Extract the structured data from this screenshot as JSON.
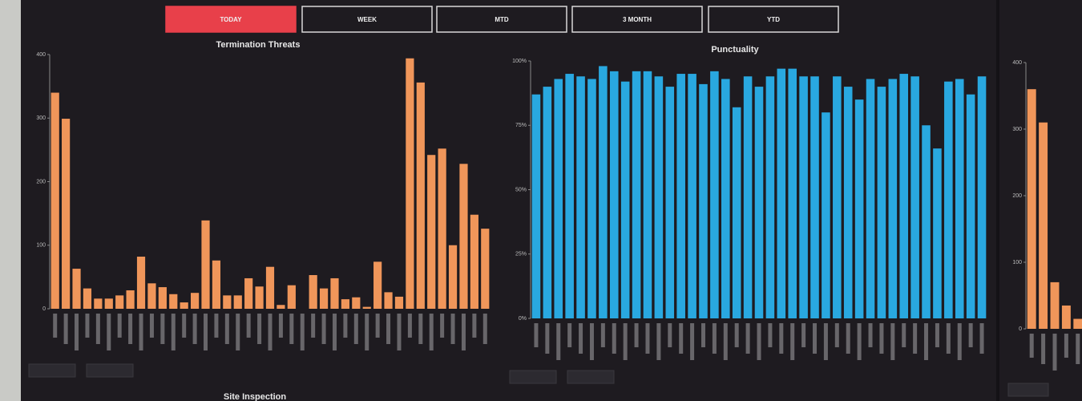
{
  "buttons": [
    {
      "label": "TODAY",
      "active": true
    },
    {
      "label": "WEEK",
      "active": false
    },
    {
      "label": "MTD",
      "active": false
    },
    {
      "label": "3 MONTH",
      "active": false
    },
    {
      "label": "YTD",
      "active": false
    }
  ],
  "chart_data": [
    {
      "type": "bar",
      "title": "Termination Threats",
      "color": "#f0965a",
      "values": [
        340,
        299,
        63,
        32,
        16,
        16,
        21,
        29,
        82,
        40,
        34,
        23,
        10,
        25,
        139,
        76,
        21,
        21,
        48,
        35,
        66,
        6,
        37,
        0,
        53,
        32,
        48,
        15,
        18,
        3,
        74,
        26,
        19,
        394,
        356,
        242,
        252,
        100,
        228,
        148,
        126
      ],
      "ylim": [
        0,
        400
      ],
      "yticks": [
        0,
        100,
        200,
        300,
        400
      ]
    },
    {
      "type": "bar",
      "title": "Punctuality",
      "color": "#29a8e0",
      "values": [
        87,
        90,
        93,
        95,
        94,
        93,
        98,
        96,
        92,
        96,
        96,
        94,
        90,
        95,
        95,
        91,
        96,
        93,
        82,
        94,
        90,
        94,
        97,
        97,
        94,
        94,
        80,
        94,
        90,
        85,
        93,
        90,
        93,
        95,
        94,
        75,
        66,
        92,
        93,
        87,
        94
      ],
      "ylim": [
        0,
        100
      ],
      "yticks": [
        {
          "value": 0,
          "label": "0%"
        },
        {
          "value": 25,
          "label": "25%"
        },
        {
          "value": 50,
          "label": "50%"
        },
        {
          "value": 75,
          "label": "75%"
        },
        {
          "value": 100,
          "label": "100%"
        }
      ]
    },
    {
      "type": "bar",
      "color": "#f0965a",
      "values": [
        360,
        310,
        70,
        35,
        15
      ],
      "ylim": [
        0,
        400
      ],
      "yticks": [
        0,
        100,
        200,
        300,
        400
      ]
    }
  ],
  "footer_title": "Site Inspection"
}
